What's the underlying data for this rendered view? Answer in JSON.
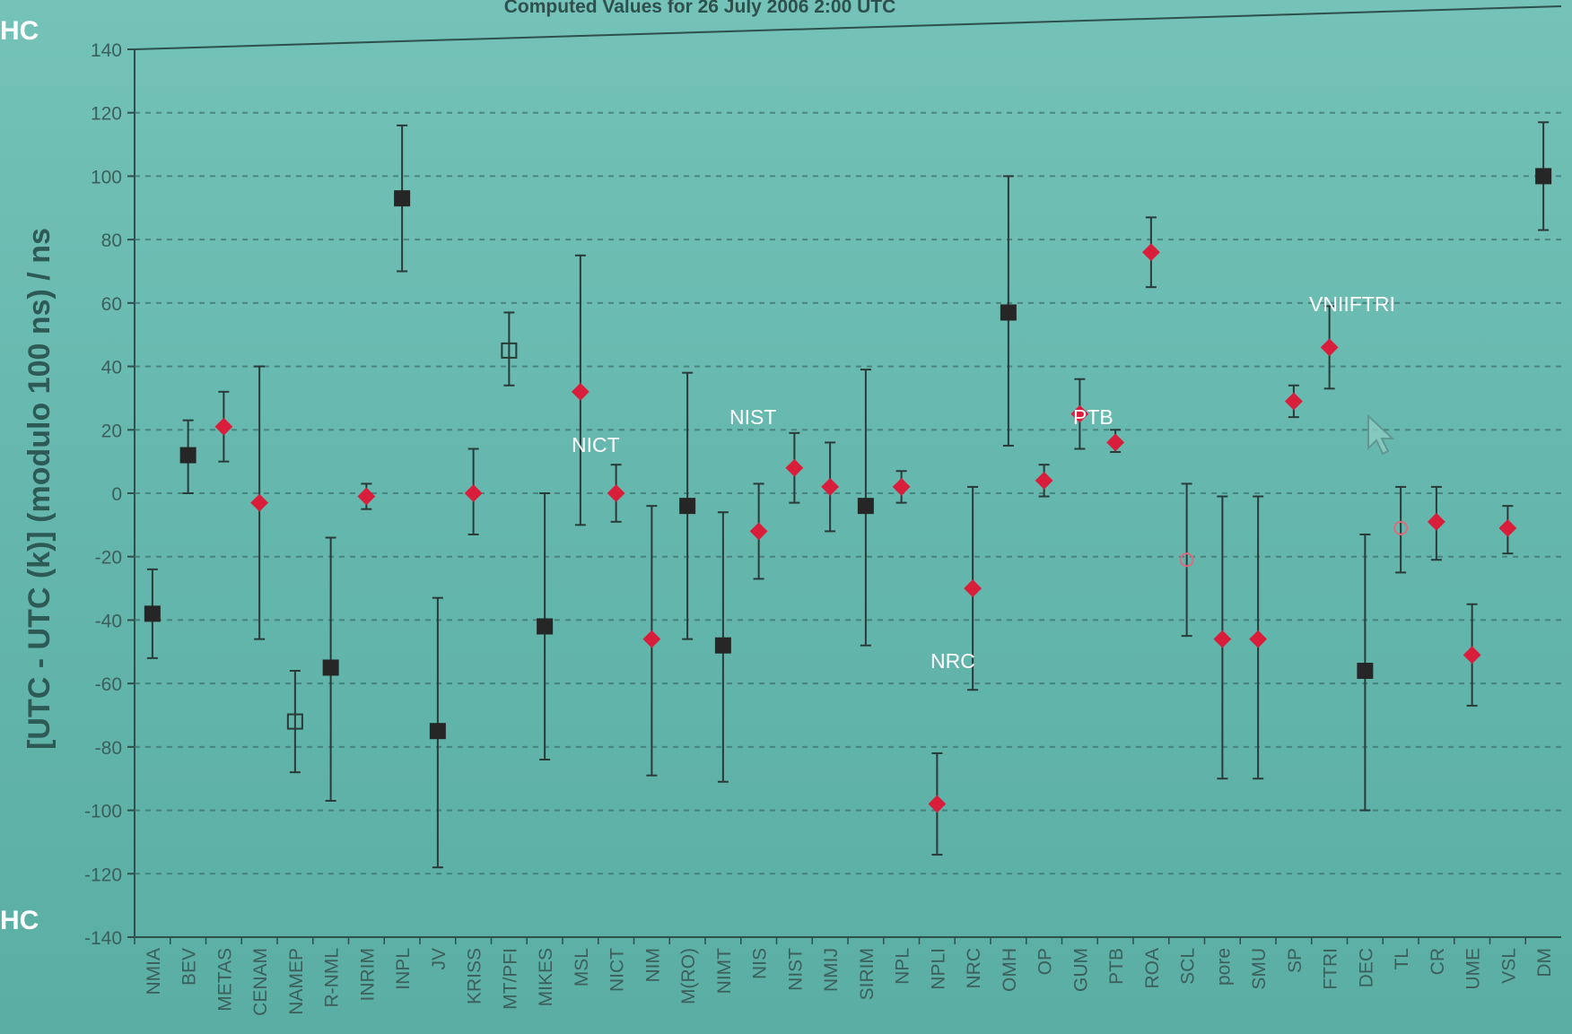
{
  "header": {
    "title": "Computed Values for 26 July 2006 2:00 UTC"
  },
  "side_marks": {
    "top": "HC",
    "bottom": "HC"
  },
  "colors": {
    "background": "#66b8ae",
    "red_marker": "#d81e3a",
    "black_marker": "#262626",
    "grid": "#3b6f69"
  },
  "chart_data": {
    "type": "scatter",
    "title": "Computed Values for 26 July 2006 2:00 UTC",
    "ylabel": "[UTC - UTC (k)] (modulo 100 ns) / ns",
    "xlabel": "",
    "ylim": [
      -140,
      140
    ],
    "yticks": [
      140,
      120,
      100,
      80,
      60,
      40,
      20,
      0,
      -20,
      -40,
      -60,
      -80,
      -100,
      -120,
      -140
    ],
    "grid": true,
    "categories": [
      "NMIA",
      "BEV",
      "METAS",
      "CENAM",
      "NAMEP",
      "R-NML",
      "INRIM",
      "INPL",
      "JV",
      "KRISS",
      "MT/PFI",
      "MIKES",
      "MSL",
      "NICT",
      "NIM",
      "M(RO)",
      "NIMT",
      "NIS",
      "NIST",
      "NMIJ",
      "SIRIM",
      "NPL",
      "NPLI",
      "NRC",
      "OMH",
      "OP",
      "GUM",
      "PTB",
      "ROA",
      "SCL",
      "pore",
      "SMU",
      "SP",
      "FTRI",
      "DEC",
      "TL",
      "CR",
      "UME",
      "VSL",
      "DM"
    ],
    "points": [
      {
        "lab": "NMIA",
        "value": -38,
        "lower": -52,
        "upper": -24,
        "marker": "black-square"
      },
      {
        "lab": "BEV",
        "value": 12,
        "lower": 0,
        "upper": 23,
        "marker": "black-square"
      },
      {
        "lab": "METAS",
        "value": 21,
        "lower": 10,
        "upper": 32,
        "marker": "red-diamond"
      },
      {
        "lab": "CENAM",
        "value": -3,
        "lower": -46,
        "upper": 40,
        "marker": "red-diamond"
      },
      {
        "lab": "NAMEP",
        "value": -72,
        "lower": -88,
        "upper": -56,
        "marker": "open-square"
      },
      {
        "lab": "R-NML",
        "value": -55,
        "lower": -97,
        "upper": -14,
        "marker": "black-square"
      },
      {
        "lab": "INRIM",
        "value": -1,
        "lower": -5,
        "upper": 3,
        "marker": "red-diamond"
      },
      {
        "lab": "INPL",
        "value": 93,
        "lower": 70,
        "upper": 116,
        "marker": "black-square"
      },
      {
        "lab": "JV",
        "value": -75,
        "lower": -118,
        "upper": -33,
        "marker": "black-square"
      },
      {
        "lab": "KRISS",
        "value": 0,
        "lower": -13,
        "upper": 14,
        "marker": "red-diamond"
      },
      {
        "lab": "MT/PFI",
        "value": 45,
        "lower": 34,
        "upper": 57,
        "marker": "open-square"
      },
      {
        "lab": "MIKES",
        "value": -42,
        "lower": -84,
        "upper": 0,
        "marker": "black-square"
      },
      {
        "lab": "MSL",
        "value": 32,
        "lower": -10,
        "upper": 75,
        "marker": "red-diamond"
      },
      {
        "lab": "NICT",
        "value": 0,
        "lower": -9,
        "upper": 9,
        "marker": "red-diamond"
      },
      {
        "lab": "NIM",
        "value": -46,
        "lower": -89,
        "upper": -4,
        "marker": "red-diamond"
      },
      {
        "lab": "M(RO)",
        "value": -4,
        "lower": -46,
        "upper": 38,
        "marker": "black-square"
      },
      {
        "lab": "NIMT",
        "value": -48,
        "lower": -91,
        "upper": -6,
        "marker": "black-square"
      },
      {
        "lab": "NIS",
        "value": -12,
        "lower": -27,
        "upper": 3,
        "marker": "red-diamond"
      },
      {
        "lab": "NIST",
        "value": 8,
        "lower": -3,
        "upper": 19,
        "marker": "red-diamond"
      },
      {
        "lab": "NMIJ",
        "value": 2,
        "lower": -12,
        "upper": 16,
        "marker": "red-diamond"
      },
      {
        "lab": "SIRIM",
        "value": -4,
        "lower": -48,
        "upper": 39,
        "marker": "black-square"
      },
      {
        "lab": "NPL",
        "value": 2,
        "lower": -3,
        "upper": 7,
        "marker": "red-diamond"
      },
      {
        "lab": "NPLI",
        "value": -98,
        "lower": -114,
        "upper": -82,
        "marker": "red-diamond"
      },
      {
        "lab": "NRC",
        "value": -30,
        "lower": -62,
        "upper": 2,
        "marker": "red-diamond"
      },
      {
        "lab": "OMH",
        "value": 57,
        "lower": 15,
        "upper": 100,
        "marker": "black-square"
      },
      {
        "lab": "OP",
        "value": 4,
        "lower": -1,
        "upper": 9,
        "marker": "red-diamond"
      },
      {
        "lab": "GUM",
        "value": 25,
        "lower": 14,
        "upper": 36,
        "marker": "red-diamond"
      },
      {
        "lab": "PTB",
        "value": 16,
        "lower": 13,
        "upper": 20,
        "marker": "red-diamond"
      },
      {
        "lab": "ROA",
        "value": 76,
        "lower": 65,
        "upper": 87,
        "marker": "red-diamond"
      },
      {
        "lab": "SCL",
        "value": -21,
        "lower": -45,
        "upper": 3,
        "marker": "open-circle"
      },
      {
        "lab": "pore",
        "value": -46,
        "lower": -90,
        "upper": -1,
        "marker": "red-diamond"
      },
      {
        "lab": "SMU",
        "value": -46,
        "lower": -90,
        "upper": -1,
        "marker": "red-diamond"
      },
      {
        "lab": "SP",
        "value": 29,
        "lower": 24,
        "upper": 34,
        "marker": "red-diamond"
      },
      {
        "lab": "FTRI",
        "value": 46,
        "lower": 33,
        "upper": 59,
        "marker": "red-diamond"
      },
      {
        "lab": "DEC",
        "value": -56,
        "lower": -100,
        "upper": -13,
        "marker": "black-square"
      },
      {
        "lab": "TL",
        "value": -11,
        "lower": -25,
        "upper": 2,
        "marker": "open-circle"
      },
      {
        "lab": "CR",
        "value": -9,
        "lower": -21,
        "upper": 2,
        "marker": "red-diamond"
      },
      {
        "lab": "UME",
        "value": -51,
        "lower": -67,
        "upper": -35,
        "marker": "red-diamond"
      },
      {
        "lab": "VSL",
        "value": -11,
        "lower": -19,
        "upper": -4,
        "marker": "red-diamond"
      },
      {
        "lab": "DM",
        "value": 100,
        "lower": 83,
        "upper": 117,
        "marker": "black-square"
      }
    ],
    "annotations": [
      "NICT",
      "NIST",
      "PTB",
      "NRC",
      "VNIIFTRI"
    ]
  }
}
